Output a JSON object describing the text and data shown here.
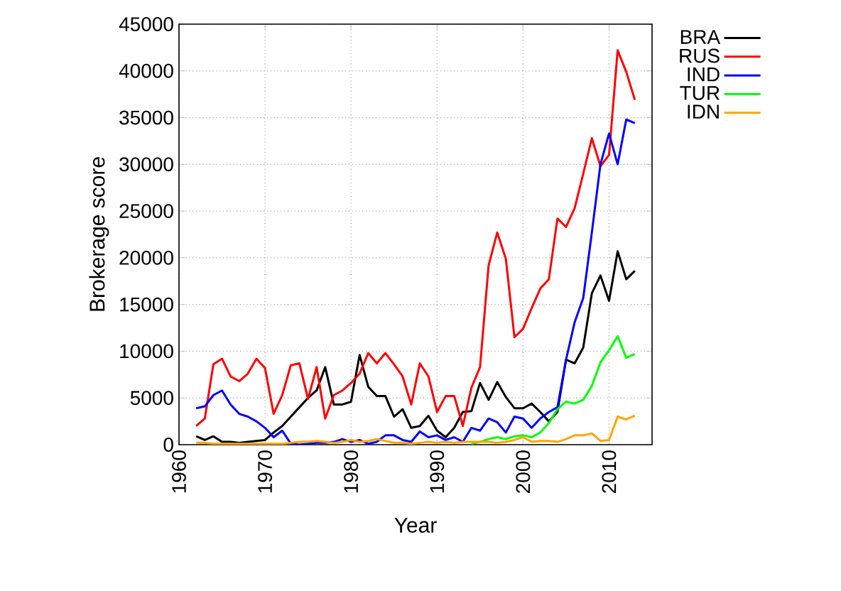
{
  "chart_data": {
    "type": "line",
    "xlabel": "Year",
    "ylabel": "Brokerage score",
    "x": [
      1962,
      1963,
      1964,
      1965,
      1966,
      1967,
      1968,
      1969,
      1970,
      1971,
      1972,
      1973,
      1974,
      1975,
      1976,
      1977,
      1978,
      1979,
      1980,
      1981,
      1982,
      1983,
      1984,
      1985,
      1986,
      1987,
      1988,
      1989,
      1990,
      1991,
      1992,
      1993,
      1994,
      1995,
      1996,
      1997,
      1998,
      1999,
      2000,
      2001,
      2002,
      2003,
      2004,
      2005,
      2006,
      2007,
      2008,
      2009,
      2010,
      2011,
      2012,
      2013
    ],
    "series": [
      {
        "name": "BRA",
        "color": "#000000",
        "values": [
          900,
          500,
          900,
          300,
          300,
          200,
          300,
          400,
          500,
          1300,
          2000,
          3000,
          4000,
          5000,
          5800,
          8300,
          4300,
          4300,
          4600,
          9600,
          6200,
          5200,
          5200,
          3000,
          3800,
          1800,
          2000,
          3100,
          1500,
          800,
          1800,
          3500,
          3600,
          6600,
          4800,
          6700,
          5100,
          3900,
          3900,
          4400,
          3500,
          2500,
          3500,
          9100,
          8700,
          10400,
          16200,
          18100,
          15400,
          20700,
          17700,
          18600
        ]
      },
      {
        "name": "RUS",
        "color": "#ff0000",
        "values": [
          2000,
          2800,
          8600,
          9200,
          7300,
          6800,
          7600,
          9200,
          8200,
          3300,
          5300,
          8500,
          8700,
          4900,
          8300,
          2800,
          5300,
          5800,
          6600,
          7600,
          9800,
          8700,
          9800,
          8600,
          7300,
          4300,
          8700,
          7300,
          3500,
          5200,
          5200,
          2000,
          6100,
          8300,
          19200,
          22700,
          19900,
          11500,
          12400,
          14600,
          16700,
          17700,
          24200,
          23300,
          25300,
          29000,
          32800,
          29800,
          31000,
          42200,
          39900,
          36900
        ]
      },
      {
        "name": "IND",
        "color": "#0000ff",
        "values": [
          3900,
          4100,
          5300,
          5800,
          4300,
          3300,
          3000,
          2500,
          1800,
          800,
          1500,
          100,
          0,
          100,
          200,
          200,
          300,
          600,
          300,
          500,
          100,
          300,
          1000,
          1000,
          500,
          300,
          1400,
          800,
          1000,
          500,
          800,
          300,
          1800,
          1500,
          2800,
          2400,
          1300,
          3000,
          2800,
          1800,
          2800,
          3500,
          4000,
          9100,
          13100,
          15700,
          22700,
          30000,
          33300,
          30000,
          34800,
          34400
        ]
      },
      {
        "name": "TUR",
        "color": "#00ff00",
        "values": [
          null,
          null,
          null,
          null,
          null,
          null,
          null,
          null,
          null,
          null,
          null,
          null,
          null,
          null,
          null,
          null,
          null,
          null,
          null,
          null,
          null,
          null,
          null,
          null,
          null,
          null,
          null,
          null,
          null,
          null,
          null,
          null,
          100,
          300,
          600,
          800,
          600,
          900,
          1000,
          800,
          1300,
          2300,
          3800,
          4600,
          4400,
          4800,
          6300,
          8800,
          10100,
          11600,
          9300,
          9700
        ]
      },
      {
        "name": "IDN",
        "color": "#ffa500",
        "values": [
          200,
          200,
          100,
          100,
          100,
          100,
          100,
          100,
          100,
          100,
          100,
          200,
          300,
          300,
          400,
          300,
          200,
          300,
          500,
          300,
          400,
          600,
          400,
          200,
          200,
          100,
          200,
          300,
          200,
          300,
          200,
          300,
          300,
          300,
          300,
          200,
          300,
          500,
          800,
          300,
          400,
          400,
          300,
          600,
          1000,
          1000,
          1200,
          400,
          500,
          3000,
          2700,
          3100
        ]
      }
    ],
    "xlim": [
      1960,
      2015
    ],
    "xticks": [
      1960,
      1970,
      1980,
      1990,
      2000,
      2010
    ],
    "ylim": [
      0,
      45000
    ],
    "yticks": [
      0,
      5000,
      10000,
      15000,
      20000,
      25000,
      30000,
      35000,
      40000,
      45000
    ],
    "grid": true,
    "legend": "right",
    "line_style": "solid"
  }
}
